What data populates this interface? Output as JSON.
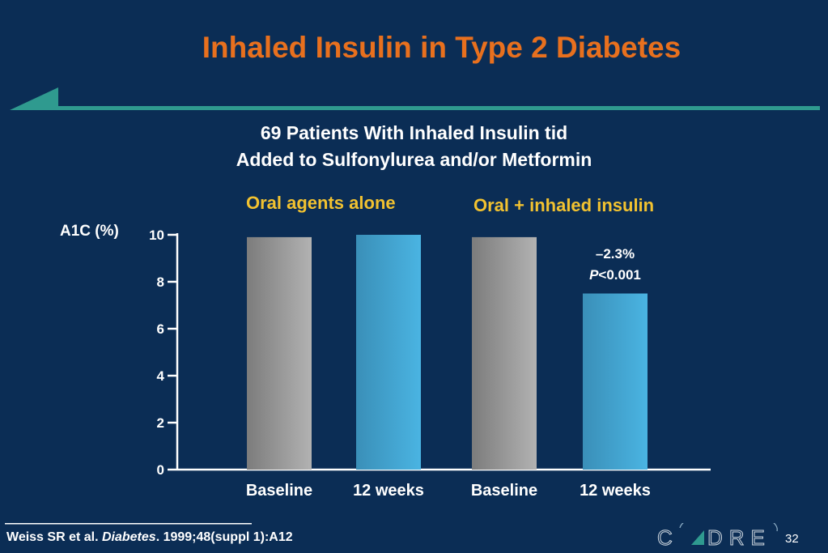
{
  "title": "Inhaled Insulin in Type 2 Diabetes",
  "subtitle_line1": "69 Patients With Inhaled Insulin tid",
  "subtitle_line2": "Added to Sulfonylurea and/or Metformin",
  "groups": [
    "Oral agents alone",
    "Oral + inhaled insulin"
  ],
  "annotation": {
    "change": "–2.3%",
    "p_letter": "P",
    "p_value": "<0.001"
  },
  "citation": {
    "authors": "Weiss SR et al. ",
    "journal": "Diabetes",
    "rest": ". 1999;48(suppl 1):A12"
  },
  "page_number": "32",
  "logo_text": "CADRE",
  "colors": {
    "background": "#0b2d55",
    "title": "#e8701e",
    "group_label": "#f2c230",
    "teal_rule": "#2f9a8f",
    "baseline_bar": "#9a9a9a",
    "week12_bar": "#45acd8"
  },
  "chart_data": {
    "type": "bar",
    "categories": [
      "Baseline",
      "12 weeks",
      "Baseline",
      "12 weeks"
    ],
    "values": [
      9.9,
      10.0,
      9.9,
      7.5
    ],
    "ylabel": "A1C (%)",
    "ylim": [
      0,
      10
    ],
    "yticks": [
      0,
      2,
      4,
      6,
      8,
      10
    ],
    "grid": false
  }
}
